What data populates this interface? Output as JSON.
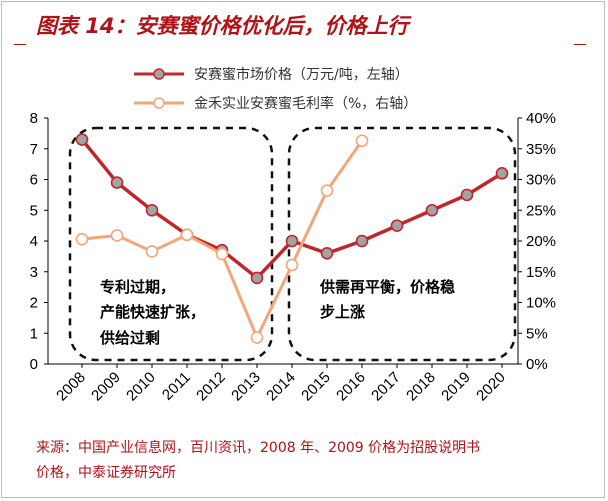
{
  "title": "图表 14：安赛蜜价格优化后，价格上行",
  "source_line1": "来源：中国产业信息网，百川资讯，2008 年、2009 价格为招股说明书",
  "source_line2": "价格，中泰证券研究所",
  "annotations": {
    "left_box": [
      "专利过期，",
      "产能快速扩张，",
      "供给过剩"
    ],
    "right_box": [
      "供需再平衡，价格稳",
      "步上涨"
    ]
  },
  "colors": {
    "price_line": "#c0272d",
    "price_marker": "#a3a3a3",
    "margin_line": "#f2a679",
    "margin_marker": "#ffffff",
    "title": "#b01218"
  },
  "chart_data": {
    "type": "line",
    "categories": [
      "2008",
      "2009",
      "2010",
      "2011",
      "2012",
      "2013",
      "2014",
      "2015",
      "2016",
      "2017",
      "2018",
      "2019",
      "2020"
    ],
    "series": [
      {
        "name": "安赛蜜市场价格（万元/吨，左轴）",
        "axis": "left",
        "values": [
          7.3,
          5.9,
          5.0,
          4.2,
          3.7,
          2.8,
          4.0,
          3.6,
          4.0,
          4.5,
          5.0,
          5.5,
          6.2
        ]
      },
      {
        "name": "金禾实业安赛蜜毛利率（%，右轴）",
        "axis": "right",
        "values": [
          20.3,
          20.9,
          18.3,
          21.0,
          17.9,
          4.3,
          16.1,
          28.2,
          36.3,
          null,
          null,
          null,
          null
        ]
      }
    ],
    "y_left": {
      "min": 0,
      "max": 8,
      "ticks": [
        "0",
        "1",
        "2",
        "3",
        "4",
        "5",
        "6",
        "7",
        "8"
      ]
    },
    "y_right": {
      "min": 0,
      "max": 40,
      "ticks": [
        "0%",
        "5%",
        "10%",
        "15%",
        "20%",
        "25%",
        "30%",
        "35%",
        "40%"
      ]
    },
    "grid": false,
    "legend_position": "top"
  }
}
